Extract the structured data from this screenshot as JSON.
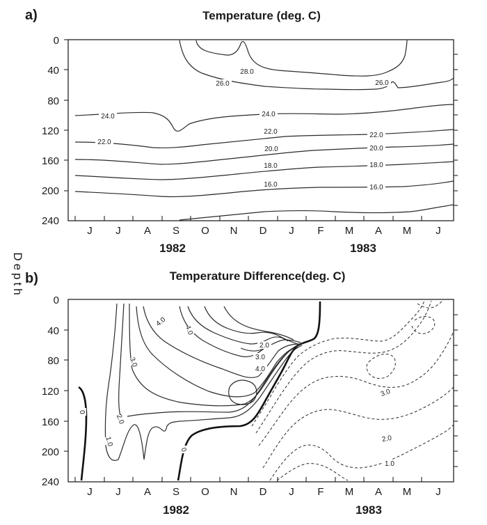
{
  "chart_data": [
    {
      "type": "contour",
      "panel_label": "a)",
      "title": "Temperature (deg. C)",
      "ylabel": "Depth",
      "yticks": [
        0,
        40,
        80,
        120,
        160,
        200,
        240
      ],
      "ylim": [
        0,
        240
      ],
      "y_inverted": true,
      "xticks": [
        "J",
        "J",
        "A",
        "S",
        "O",
        "N",
        "D",
        "J",
        "F",
        "M",
        "A",
        "M",
        "J"
      ],
      "years": [
        "1982",
        "1983"
      ],
      "contour_levels": [
        {
          "label": "28.0",
          "depth_profile": [
            52,
            58,
            60,
            56
          ],
          "months": [
            6.5,
            8,
            9.5,
            10.5
          ]
        },
        {
          "label": "26.0",
          "depth_profile": [
            58,
            65,
            70,
            72,
            62
          ],
          "months": [
            5.5,
            6.5,
            8,
            9.5,
            11.5
          ]
        },
        {
          "label": "24.0",
          "depth_profile": [
            104,
            108,
            116,
            100,
            96,
            92,
            88
          ],
          "months": [
            0,
            1,
            3,
            5,
            7,
            9,
            12
          ]
        },
        {
          "label": "22.0",
          "depth_profile": [
            138,
            140,
            138,
            124,
            118,
            110
          ],
          "months": [
            0,
            2,
            4,
            6,
            9,
            12
          ]
        },
        {
          "label": "20.0",
          "depth_profile": [
            160,
            162,
            150,
            145,
            138
          ],
          "months": [
            0,
            3,
            6,
            9,
            12
          ]
        },
        {
          "label": "18.0",
          "depth_profile": [
            182,
            188,
            175,
            170,
            162
          ],
          "months": [
            0,
            3,
            6,
            9,
            12
          ]
        },
        {
          "label": "16.0",
          "depth_profile": [
            210,
            212,
            205,
            200,
            175
          ],
          "months": [
            0,
            3,
            6,
            9,
            12
          ]
        }
      ]
    },
    {
      "type": "contour",
      "panel_label": "b)",
      "title": "Temperature Difference(deg. C)",
      "ylabel": "Depth",
      "yticks": [
        0,
        40,
        80,
        120,
        160,
        200,
        240
      ],
      "ylim": [
        0,
        240
      ],
      "y_inverted": true,
      "xticks": [
        "J",
        "J",
        "A",
        "S",
        "O",
        "N",
        "D",
        "J",
        "F",
        "M",
        "A",
        "M",
        "J"
      ],
      "years": [
        "1982",
        "1983"
      ],
      "positive_labels": [
        "4.0",
        "3.0",
        "2.0",
        "1.0",
        "0"
      ],
      "negative_labels": [
        "2.0",
        "3.0",
        "4.0",
        "3.0",
        "2.0",
        "1.0"
      ],
      "note": "solid contours positive, dashed contours negative, bold line zero"
    }
  ]
}
